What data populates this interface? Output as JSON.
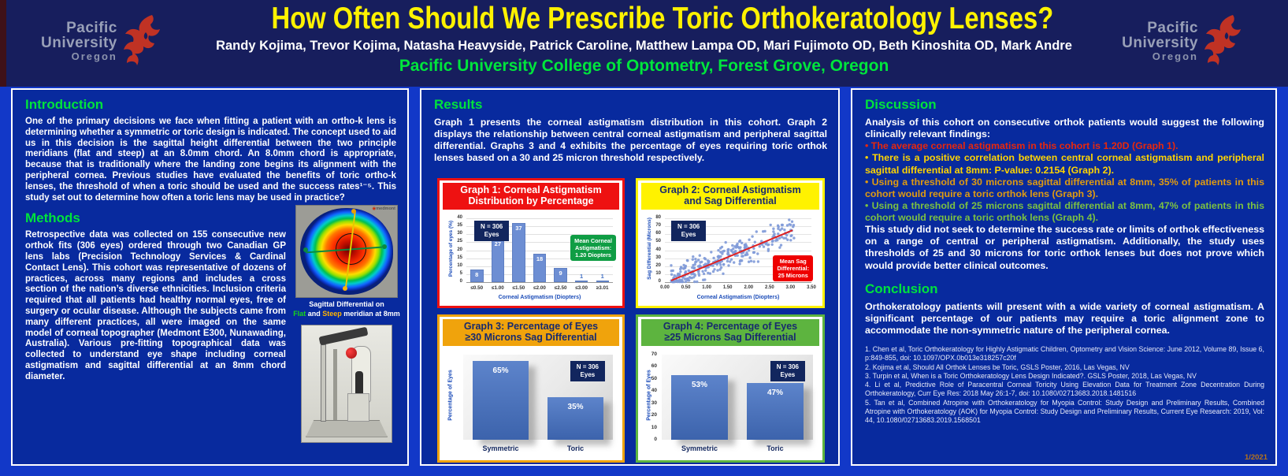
{
  "header": {
    "title": "How Often Should We Prescribe Toric Orthokeratology Lenses?",
    "authors": "Randy Kojima, Trevor Kojima, Natasha Heavyside, Patrick Caroline, Matthew Lampa OD, Mari Fujimoto OD, Beth Kinoshita OD, Mark Andre",
    "affiliation": "Pacific University College of Optometry, Forest Grove, Oregon",
    "logo": {
      "line1": "Pacific",
      "line2": "University",
      "line3": "Oregon"
    }
  },
  "intro": {
    "heading": "Introduction",
    "body": "One of the primary decisions we face when fitting a patient with an ortho-k lens is determining whether a symmetric or toric design is indicated.  The concept used to aid us in this decision is the sagittal height differential between the two principle meridians (flat and steep) at an 8.0mm chord.  An 8.0mm chord is appropriate, because that is traditionally where the landing zone begins its alignment with the peripheral cornea.  Previous studies have evaluated the benefits of toric ortho-k lenses, the threshold of when a toric should be used and the success rates¹⁻⁵.  This study set out to determine how often a toric lens may be used in practice?"
  },
  "methods": {
    "heading": "Methods",
    "body": "Retrospective data was collected on 155 consecutive new orthok fits (306 eyes) ordered through two Canadian GP lens labs (Precision Technology Services & Cardinal Contact Lens).  This cohort was representative of dozens of practices, across many regions and includes a cross section of the nation’s diverse ethnicities.  Inclusion criteria required that all patients had healthy normal eyes, free of surgery or ocular disease.  Although the subjects came from many different practices, all were imaged on the same model of corneal topographer (Medmont E300, Nunawading, Australia).  Various pre-fitting topographical data was collected to understand eye shape including corneal astigmatism and sagittal differential at an 8mm chord diameter.",
    "topo_brand": "medmont",
    "caption_line1": "Sagittal Differential on",
    "caption_flat": "Flat",
    "caption_and": " and ",
    "caption_steep": "Steep",
    "caption_tail": " meridian at 8mm"
  },
  "results": {
    "heading": "Results",
    "body": "Graph 1 presents the corneal astigmatism distribution in this cohort.  Graph 2 displays the relationship between central corneal astigmatism and peripheral sagittal differential.  Graphs 3 and 4 exhibits the percentage of eyes requiring toric orthok lenses based on a 30 and 25 micron threshold respectively."
  },
  "discussion": {
    "heading": "Discussion",
    "intro": "Analysis of this cohort on consecutive orthok patients would suggest the following clinically relevant findings:",
    "bullets": [
      {
        "text": "• The average corneal astigmatism in this cohort is 1.20D (Graph 1).",
        "color": "#e8280c"
      },
      {
        "text": "• There is a positive correlation between central corneal astigmatism and peripheral sagittal differential at 8mm: P-value: 0.2154 (Graph 2).",
        "color": "#ffd400"
      },
      {
        "text": "• Using a threshold of 30 microns sagittal differential at 8mm, 35% of patients in this cohort would require a toric orthok lens (Graph 3).",
        "color": "#e09b10"
      },
      {
        "text": "• Using a threshold of 25 microns sagittal differential at 8mm, 47% of patients in this cohort would require a toric orthok lens (Graph 4).",
        "color": "#7cc141"
      }
    ],
    "closing": "This study did not seek to determine the success rate or limits of orthok effectiveness on a range of central or peripheral astigmatism.  Additionally, the study uses thresholds of 25 and 30 microns for toric orthok lenses but does not prove which would provide better clinical outcomes."
  },
  "conclusion": {
    "heading": "Conclusion",
    "body": "Orthokeratology patients will present with a wide variety of corneal astigmatism.  A significant percentage of our patients may require a toric alignment zone to accommodate the non-symmetric nature of the peripheral cornea."
  },
  "references": [
    "1. Chen et al, Toric Orthokeratology for Highly Astigmatic Children, Optometry and Vision Science: June 2012, Volume 89, Issue 6, p:849-855, doi: 10.1097/OPX.0b013e318257c20f",
    "2. Kojima et al, Should All Orthok Lenses be Toric, GSLS Poster, 2016, Las Vegas, NV",
    "3. Turpin et al, When is a Toric Orthokeratology Lens Design Indicated?. GSLS Poster, 2018, Las Vegas, NV",
    "4. Li et al, Predictive Role of Paracentral Corneal Toricity Using Elevation Data for Treatment Zone Decentration During Orthokeratology, Curr Eye Res: 2018 May 26:1-7, doi: 10.1080/02713683.2018.1481516",
    "5. Tan et al, Combined Atropine with Orthokeratology for Myopia Control: Study Design and Preliminary Results, Combined Atropine with Orthokeratology (AOK) for Myopia Control: Study Design and Preliminary Results, Current Eye Research: 2019, Vol: 44, 10.1080/02713683.2019.1568501"
  ],
  "date_note": "1/2021",
  "chart_data": [
    {
      "id": "graph1",
      "type": "bar",
      "title_lines": [
        "Graph 1: Corneal Astigmatism",
        "Distribution by Percentage"
      ],
      "header_bg": "#ee1111",
      "header_fg": "#ffffff",
      "border": "#ee1111",
      "categories": [
        "≤0.50",
        "≤1.00",
        "≤1.50",
        "≤2.00",
        "≤2.50",
        "≤3.00",
        "≥3.01"
      ],
      "values": [
        8,
        27,
        37,
        18,
        9,
        1,
        1
      ],
      "xlabel": "Corneal Astigmatism (Diopters)",
      "ylabel": "Percentage of eyes (%)",
      "ylim": [
        0,
        40
      ],
      "ytick_step": 5,
      "grid": true,
      "bar_color": "#6d8ed3",
      "n_label_lines": [
        "N = 306",
        "Eyes"
      ],
      "annotation": {
        "lines": [
          "Mean Corneal",
          "Astigmatism:",
          "1.20 Diopters"
        ],
        "bg": "#0f9d44",
        "fg": "#ffffff"
      }
    },
    {
      "id": "graph2",
      "type": "scatter",
      "title_lines": [
        "Graph 2: Corneal Astigmatism",
        "and Sag Differential"
      ],
      "header_bg": "#fff200",
      "header_fg": "#172a6e",
      "border": "#fff200",
      "xlabel": "Corneal Astigmatism (Diopters)",
      "ylabel": "Sag Differential (Microns)",
      "xlim": [
        0,
        3.5
      ],
      "xtick_step": 0.5,
      "ylim": [
        0,
        80
      ],
      "ytick_step": 10,
      "grid": true,
      "n_points": 306,
      "point_color": "#7f9ad8",
      "scatter_seed": 42,
      "noise": 16,
      "trend": {
        "x1": 0.15,
        "y1": 2,
        "x2": 3.05,
        "y2": 65,
        "color": "#e02020"
      },
      "n_label_lines": [
        "N = 306",
        "Eyes"
      ],
      "annotation": {
        "lines": [
          "Mean Sag",
          "Differential:",
          "25 Microns"
        ],
        "bg": "#ee0000",
        "fg": "#ffffff"
      }
    },
    {
      "id": "graph3",
      "type": "bar2",
      "title_lines": [
        "Graph 3: Percentage of Eyes",
        "≥30 Microns Sag Differential"
      ],
      "header_bg": "#f0a30c",
      "header_fg": "#172a6e",
      "border": "#f0a30c",
      "categories": [
        "Symmetric",
        "Toric"
      ],
      "values": [
        65,
        35
      ],
      "value_labels": [
        "65%",
        "35%"
      ],
      "ylabel": "Percentage of Eyes",
      "ylim": [
        0,
        70
      ],
      "yticks_visible": false,
      "n_label_lines": [
        "N = 306",
        "Eyes"
      ]
    },
    {
      "id": "graph4",
      "type": "bar2",
      "title_lines": [
        "Graph 4: Percentage of Eyes",
        "≥25 Microns Sag Differential"
      ],
      "header_bg": "#5db43f",
      "header_fg": "#172a6e",
      "border": "#5db43f",
      "categories": [
        "Symmetric",
        "Toric"
      ],
      "values": [
        53,
        47
      ],
      "value_labels": [
        "53%",
        "47%"
      ],
      "ylabel": "Percentage of Eyes",
      "ylim": [
        0,
        70
      ],
      "ytick_step": 10,
      "yticks_visible": true,
      "n_label_lines": [
        "N = 306",
        "Eyes"
      ]
    }
  ]
}
